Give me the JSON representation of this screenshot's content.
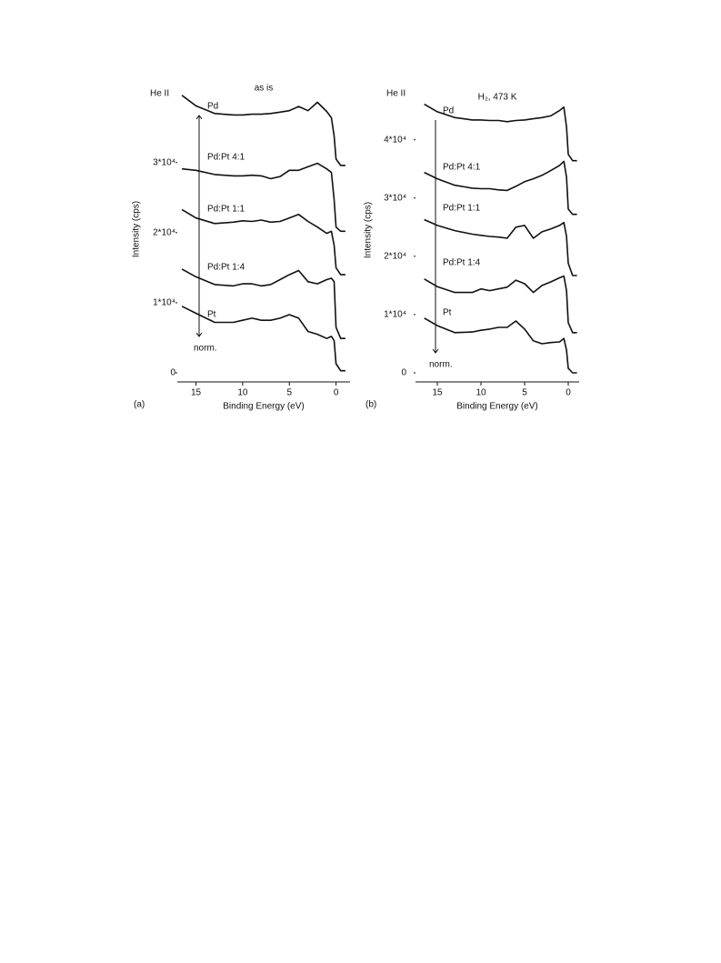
{
  "chart_data": [
    {
      "type": "line",
      "title": "as is",
      "panel_label": "(a)",
      "corner_label": "He II",
      "annotation": "norm.",
      "x_label": "Binding Energy (eV)",
      "y_label": "Intensity (cps)",
      "x": [
        16.5,
        15,
        13,
        11,
        10,
        9,
        8,
        7,
        6,
        5,
        4,
        3,
        2,
        1,
        0.5,
        0.2,
        0,
        -0.5,
        -1
      ],
      "xlim": [
        17,
        -1.5
      ],
      "xticks": [
        15,
        10,
        5,
        0
      ],
      "ylim": [
        0,
        41000
      ],
      "yticks": [
        0,
        {
          "value": 10000,
          "label": "1*10⁴"
        },
        {
          "value": 20000,
          "label": "2*10⁴"
        },
        {
          "value": 30000,
          "label": "3*10⁴"
        }
      ],
      "series": [
        {
          "name": "Pd",
          "color": "#111111",
          "values": [
            39600,
            38100,
            37000,
            36800,
            36800,
            36900,
            36900,
            37000,
            37200,
            37400,
            38000,
            37400,
            38600,
            37300,
            36400,
            33800,
            30500,
            29600,
            29600
          ]
        },
        {
          "name": "Pd:Pt 4:1",
          "color": "#111111",
          "values": [
            29100,
            28900,
            28300,
            28100,
            28100,
            28200,
            28100,
            27700,
            28000,
            28900,
            28900,
            29400,
            29900,
            29100,
            28600,
            24700,
            20800,
            20200,
            20200
          ]
        },
        {
          "name": "Pd:Pt 1:1",
          "color": "#111111",
          "values": [
            23300,
            22100,
            21300,
            21500,
            21700,
            21600,
            21800,
            21500,
            21600,
            22100,
            22600,
            21600,
            20800,
            19900,
            20200,
            18200,
            15000,
            14000,
            14000
          ]
        },
        {
          "name": "Pd:Pt 1:4",
          "color": "#111111",
          "values": [
            14800,
            13700,
            12600,
            12400,
            12700,
            12700,
            12400,
            12600,
            13300,
            14000,
            14600,
            13000,
            12700,
            13300,
            13500,
            13000,
            6500,
            4900,
            4900
          ]
        },
        {
          "name": "Pt",
          "color": "#111111",
          "values": [
            9500,
            8500,
            7200,
            7200,
            7500,
            7800,
            7500,
            7500,
            7800,
            8300,
            7800,
            5900,
            5500,
            4900,
            5200,
            4600,
            1300,
            300,
            300
          ]
        }
      ]
    },
    {
      "type": "line",
      "title": "H₂, 473 K",
      "panel_label": "(b)",
      "corner_label": "He II",
      "annotation": "norm.",
      "x_label": "Binding Energy (eV)",
      "y_label": "Intensity (cps)",
      "x": [
        16.5,
        15,
        13,
        11,
        10,
        9,
        8,
        7,
        6,
        5,
        4,
        3,
        2,
        1,
        0.5,
        0.2,
        0,
        -0.5,
        -1
      ],
      "xlim": [
        17.5,
        -1.25
      ],
      "xticks": [
        15,
        10,
        5,
        0
      ],
      "ylim": [
        0,
        49000
      ],
      "yticks": [
        0,
        {
          "value": 10000,
          "label": "1*10⁴"
        },
        {
          "value": 20000,
          "label": "2*10⁴"
        },
        {
          "value": 30000,
          "label": "3*10⁴"
        },
        {
          "value": 40000,
          "label": "4*10⁴"
        }
      ],
      "series": [
        {
          "name": "Pd",
          "color": "#111111",
          "values": [
            46100,
            44800,
            43800,
            43400,
            43400,
            43300,
            43300,
            43100,
            43300,
            43400,
            43600,
            43800,
            44100,
            45000,
            45600,
            42200,
            37500,
            36400,
            36400
          ]
        },
        {
          "name": "Pd:Pt 4:1",
          "color": "#111111",
          "values": [
            34400,
            33300,
            32200,
            31700,
            31600,
            31600,
            31400,
            31300,
            32000,
            32800,
            33300,
            33900,
            34700,
            35600,
            36300,
            33600,
            28100,
            27200,
            27200
          ]
        },
        {
          "name": "Pd:Pt 1:1",
          "color": "#111111",
          "values": [
            26300,
            25300,
            24400,
            23800,
            23600,
            23400,
            23300,
            23100,
            25000,
            25300,
            23100,
            24200,
            24700,
            25300,
            25800,
            23400,
            18800,
            16700,
            16700
          ]
        },
        {
          "name": "Pd:Pt 1:4",
          "color": "#111111",
          "values": [
            16100,
            14800,
            13800,
            13800,
            14400,
            14100,
            14400,
            14700,
            15900,
            15300,
            13800,
            15000,
            15600,
            16300,
            16600,
            14100,
            8600,
            6900,
            6900
          ]
        },
        {
          "name": "Pt",
          "color": "#111111",
          "values": [
            9400,
            8100,
            6900,
            7000,
            7300,
            7500,
            7800,
            7800,
            8900,
            7500,
            5500,
            5000,
            5200,
            5300,
            5900,
            3900,
            800,
            0,
            0
          ]
        }
      ]
    }
  ]
}
